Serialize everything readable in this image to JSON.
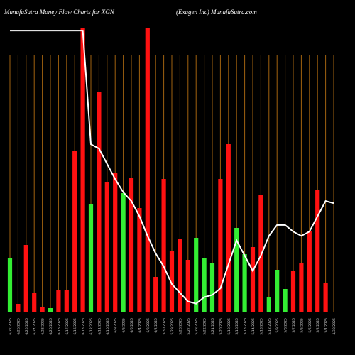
{
  "header": {
    "left": "MunafaSutra  Money Flow  Charts for XGN",
    "right": "(Exagen  Inc) MunafaSutra.com"
  },
  "colors": {
    "background": "#000000",
    "grid": "#a0620f",
    "up": "#33ee33",
    "down": "#ff1111",
    "line": "#ffffff"
  },
  "chart_data": {
    "type": "bar",
    "title": "MunafaSutra  Money Flow  Charts for XGN",
    "subtitle": "(Exagen  Inc) MunafaSutra.com",
    "categories": [
      "Fri 27 Jun 2025",
      "Thu 26 Jun 2025",
      "Wed 25 Jun 2025",
      "Tue 24 Jun 2025",
      "Mon 23 Jun 2025",
      "Fri 20 Jun 2025",
      "Wed 18 Jun 2025",
      "Tue 17 Jun 2025",
      "Mon 16 Jun 2025",
      "Fri 13 Jun 2025",
      "Thu 12 Jun 2025",
      "Wed 11 Jun 2025",
      "Tue 10 Jun 2025",
      "Mon 09 Jun 2025",
      "Fri 06 Jun 2025",
      "Thu 05 Jun 2025",
      "Wed 04 Jun 2025",
      "Tue 03 Jun 2025",
      "Mon 02 Jun 2025",
      "Fri 30 May 2025",
      "Thu 29 May 2025",
      "Wed 28 May 2025",
      "Tue 27 May 2025",
      "Fri 23 May 2025",
      "Thu 22 May 2025",
      "Wed 21 May 2025",
      "Tue 20 May 2025",
      "Mon 19 May 2025",
      "Fri 16 May 2025",
      "Thu 15 May 2025",
      "Wed 14 May 2025",
      "Tue 13 May 2025",
      "Mon 12 May 2025",
      "Fri 09 May 2025",
      "Thu 08 May 2025",
      "Wed 07 May 2025",
      "Tue 06 May 2025",
      "Mon 05 May 2025",
      "Fri 02 May 2025",
      "Thu 01 May 2025",
      "Wed 30 Apr 2025"
    ],
    "x_labels": [
      "6/27/2025",
      "6/26/2025",
      "6/25/2025",
      "6/24/2025",
      "6/23/2025",
      "6/20/2025",
      "6/18/2025",
      "6/17/2025",
      "6/16/2025",
      "6/13/2025",
      "6/12/2025",
      "6/11/2025",
      "6/10/2025",
      "6/9/2025",
      "6/6/2025",
      "6/5/2025",
      "6/4/2025",
      "6/3/2025",
      "6/2/2025",
      "5/30/2025",
      "5/29/2025",
      "5/28/2025",
      "5/27/2025",
      "5/23/2025",
      "5/22/2025",
      "5/21/2025",
      "5/20/2025",
      "5/19/2025",
      "5/16/2025",
      "5/15/2025",
      "5/14/2025",
      "5/13/2025",
      "5/12/2025",
      "5/9/2025",
      "5/8/2025",
      "5/7/2025",
      "5/6/2025",
      "5/5/2025",
      "5/2/2025",
      "5/1/2025",
      "4/30/2025"
    ],
    "values": [
      76,
      12,
      95,
      28,
      7,
      6,
      32,
      32,
      228,
      400,
      152,
      310,
      184,
      197,
      168,
      190,
      147,
      400,
      50,
      188,
      86,
      103,
      74,
      105,
      76,
      69,
      188,
      237,
      119,
      82,
      92,
      166,
      22,
      60,
      33,
      58,
      70,
      114,
      172,
      42,
      0
    ],
    "directions": [
      "up",
      "down",
      "down",
      "down",
      "down",
      "up",
      "down",
      "down",
      "down",
      "down",
      "up",
      "down",
      "down",
      "down",
      "up",
      "down",
      "down",
      "down",
      "down",
      "down",
      "down",
      "down",
      "down",
      "up",
      "up",
      "up",
      "down",
      "down",
      "up",
      "up",
      "down",
      "down",
      "up",
      "up",
      "up",
      "down",
      "down",
      "down",
      "down",
      "down",
      "none"
    ],
    "price_line": [
      99,
      99,
      99,
      99,
      99,
      99,
      99,
      99,
      99,
      99,
      47,
      45,
      38,
      31,
      25,
      21,
      14,
      5,
      -3,
      -9,
      -17,
      -21,
      -25,
      -26,
      -23,
      -22,
      -19,
      -8,
      3,
      -4,
      -11,
      -4,
      5,
      10,
      10,
      7,
      5,
      7,
      14,
      21,
      20
    ],
    "ylim": [
      0,
      400
    ],
    "price_ylim": [
      -30,
      100
    ],
    "grid": true,
    "legend": "none"
  }
}
